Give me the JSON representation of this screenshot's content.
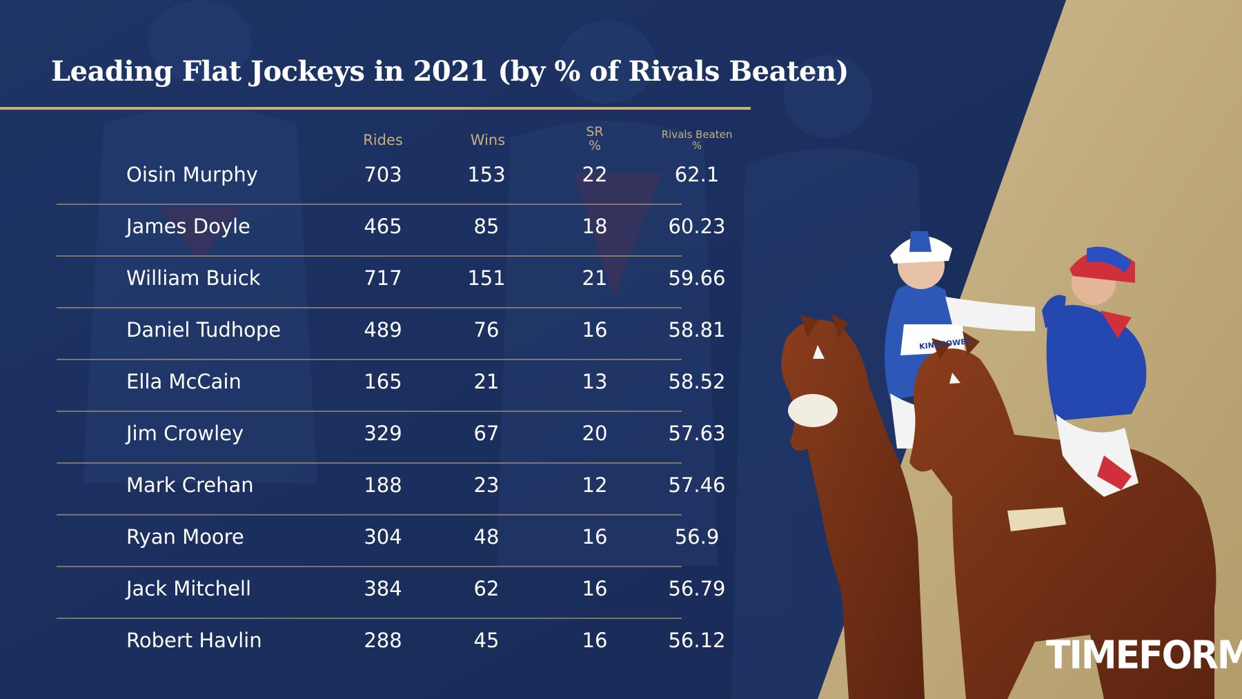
{
  "title": "Leading Flat Jockeys in 2021 (by % of Rivals Beaten)",
  "columns": {
    "rides": "Rides",
    "wins": "Wins",
    "sr_line1": "SR",
    "sr_line2": "%",
    "rivals_line1": "Rivals Beaten",
    "rivals_line2": "%"
  },
  "rows": [
    {
      "name": "Oisin Murphy",
      "rides": "703",
      "wins": "153",
      "sr": "22",
      "rivals_beaten": "62.1"
    },
    {
      "name": "James Doyle",
      "rides": "465",
      "wins": "85",
      "sr": "18",
      "rivals_beaten": "60.23"
    },
    {
      "name": "William Buick",
      "rides": "717",
      "wins": "151",
      "sr": "21",
      "rivals_beaten": "59.66"
    },
    {
      "name": "Daniel Tudhope",
      "rides": "489",
      "wins": "76",
      "sr": "16",
      "rivals_beaten": "58.81"
    },
    {
      "name": "Ella McCain",
      "rides": "165",
      "wins": "21",
      "sr": "13",
      "rivals_beaten": "58.52"
    },
    {
      "name": "Jim Crowley",
      "rides": "329",
      "wins": "67",
      "sr": "20",
      "rivals_beaten": "57.63"
    },
    {
      "name": "Mark Crehan",
      "rides": "188",
      "wins": "23",
      "sr": "12",
      "rivals_beaten": "57.46"
    },
    {
      "name": "Ryan Moore",
      "rides": "304",
      "wins": "48",
      "sr": "16",
      "rivals_beaten": "56.9"
    },
    {
      "name": "Jack Mitchell",
      "rides": "384",
      "wins": "62",
      "sr": "16",
      "rivals_beaten": "56.79"
    },
    {
      "name": "Robert Havlin",
      "rides": "288",
      "wins": "45",
      "sr": "16",
      "rivals_beaten": "56.12"
    }
  ],
  "photo_caption_text": "KINGPOWER",
  "brand": "TIMEFORM",
  "colors": {
    "navy": "#1b2f5e",
    "gold": "#c9b07a",
    "text": "#ffffff"
  }
}
